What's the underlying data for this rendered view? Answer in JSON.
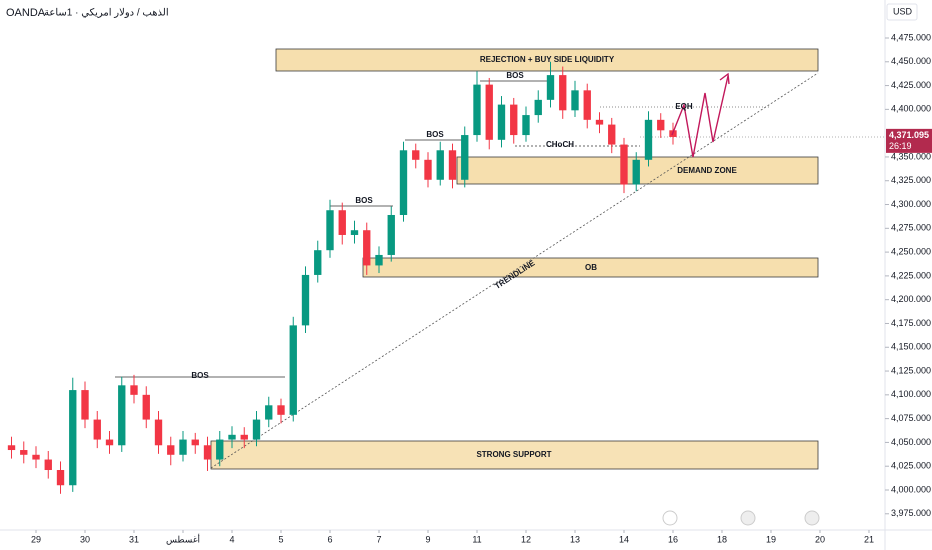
{
  "chart_data": {
    "type": "candlestick",
    "title": "OANDA",
    "subtitle": "الذهب / دولار امريكي · 1ساعة",
    "y_unit": "USD",
    "x": [
      -0.5,
      -0.25,
      0,
      0.25,
      0.5,
      0.75,
      1,
      1.25,
      1.5,
      1.75,
      2,
      2.25,
      2.5,
      2.75,
      3,
      3.25,
      3.5,
      3.75,
      4,
      4.25,
      4.5,
      4.75,
      5,
      5.25,
      5.5,
      5.75,
      6,
      6.25,
      6.5,
      6.75,
      7,
      7.25,
      7.5,
      7.75,
      8,
      8.25,
      8.5,
      8.75,
      9,
      9.25,
      9.5,
      9.75,
      10,
      10.25,
      10.5,
      10.75,
      11,
      11.25,
      11.5,
      11.75,
      12,
      12.25,
      12.5,
      12.75,
      13
    ],
    "open": [
      4047,
      4042,
      4037,
      4032,
      4021,
      4005,
      4105,
      4074,
      4053,
      4047,
      4110,
      4100,
      4074,
      4047,
      4037,
      4053,
      4047,
      4032,
      4053,
      4058,
      4053,
      4074,
      4089,
      4079,
      4173,
      4226,
      4252,
      4294,
      4268,
      4273,
      4236,
      4247,
      4289,
      4357,
      4347,
      4326,
      4357,
      4326,
      4373,
      4426,
      4368,
      4405,
      4373,
      4394,
      4410,
      4436,
      4399,
      4420,
      4389,
      4384,
      4363,
      4321,
      4347,
      4389,
      4378
    ],
    "high": [
      4056,
      4051,
      4046,
      4041,
      4030,
      4118,
      4114,
      4083,
      4062,
      4119,
      4121,
      4109,
      4083,
      4056,
      4062,
      4060,
      4056,
      4062,
      4067,
      4066,
      4083,
      4098,
      4096,
      4182,
      4235,
      4262,
      4305,
      4302,
      4283,
      4281,
      4256,
      4298,
      4366,
      4364,
      4355,
      4366,
      4364,
      4382,
      4440,
      4433,
      4414,
      4412,
      4403,
      4420,
      4450,
      4445,
      4430,
      4427,
      4397,
      4391,
      4370,
      4355,
      4398,
      4396,
      4386
    ],
    "low": [
      4033,
      4028,
      4023,
      4012,
      3996,
      3998,
      4065,
      4044,
      4038,
      4040,
      4091,
      4065,
      4038,
      4026,
      4030,
      4038,
      4020,
      4025,
      4044,
      4044,
      4046,
      4066,
      4070,
      4072,
      4165,
      4218,
      4244,
      4258,
      4259,
      4226,
      4228,
      4240,
      4282,
      4338,
      4318,
      4320,
      4317,
      4318,
      4366,
      4358,
      4360,
      4364,
      4366,
      4386,
      4402,
      4390,
      4392,
      4380,
      4375,
      4354,
      4312,
      4314,
      4340,
      4370,
      4363
    ],
    "close": [
      4042,
      4037,
      4032,
      4021,
      4005,
      4105,
      4074,
      4053,
      4047,
      4110,
      4100,
      4074,
      4047,
      4037,
      4053,
      4047,
      4032,
      4053,
      4058,
      4053,
      4074,
      4089,
      4079,
      4173,
      4226,
      4252,
      4294,
      4268,
      4273,
      4236,
      4247,
      4289,
      4357,
      4347,
      4326,
      4357,
      4326,
      4373,
      4426,
      4368,
      4405,
      4373,
      4394,
      4410,
      4436,
      4399,
      4420,
      4389,
      4384,
      4363,
      4321,
      4347,
      4389,
      4378,
      4371
    ],
    "up_color": "#089981",
    "down_color": "#f23645",
    "xlim": [
      -0.735,
      17.327
    ],
    "xticks": [
      {
        "value": 0,
        "label": "29"
      },
      {
        "value": 1,
        "label": "30"
      },
      {
        "value": 2,
        "label": "31"
      },
      {
        "value": 3,
        "label": "أغسطس"
      },
      {
        "value": 4,
        "label": "4"
      },
      {
        "value": 5,
        "label": "5"
      },
      {
        "value": 6,
        "label": "6"
      },
      {
        "value": 7,
        "label": "7"
      },
      {
        "value": 8,
        "label": "9"
      },
      {
        "value": 9,
        "label": "11"
      },
      {
        "value": 10,
        "label": "12"
      },
      {
        "value": 11,
        "label": "13"
      },
      {
        "value": 12,
        "label": "14"
      },
      {
        "value": 13,
        "label": "16"
      },
      {
        "value": 14,
        "label": "18"
      },
      {
        "value": 15,
        "label": "19"
      },
      {
        "value": 16,
        "label": "20"
      },
      {
        "value": 17,
        "label": "21"
      }
    ],
    "ylim": [
      3957.96,
      4514.93
    ],
    "yticks": [
      {
        "value": 3975,
        "label": "3,975.000"
      },
      {
        "value": 4000,
        "label": "4,000.000"
      },
      {
        "value": 4025,
        "label": "4,025.000"
      },
      {
        "value": 4050,
        "label": "4,050.000"
      },
      {
        "value": 4075,
        "label": "4,075.000"
      },
      {
        "value": 4100,
        "label": "4,100.000"
      },
      {
        "value": 4125,
        "label": "4,125.000"
      },
      {
        "value": 4150,
        "label": "4,150.000"
      },
      {
        "value": 4175,
        "label": "4,175.000"
      },
      {
        "value": 4200,
        "label": "4,200.000"
      },
      {
        "value": 4225,
        "label": "4,225.000"
      },
      {
        "value": 4250,
        "label": "4,250.000"
      },
      {
        "value": 4275,
        "label": "4,275.000"
      },
      {
        "value": 4300,
        "label": "4,300.000"
      },
      {
        "value": 4325,
        "label": "4,325.000"
      },
      {
        "value": 4350,
        "label": "4,350.000"
      },
      {
        "value": 4400,
        "label": "4,400.000"
      },
      {
        "value": 4425,
        "label": "4,425.000"
      },
      {
        "value": 4450,
        "label": "4,450.000"
      },
      {
        "value": 4475,
        "label": "4,475.000"
      }
    ],
    "last_price": {
      "value": 4371.095,
      "label": "4,371.095"
    },
    "countdown": "26:19",
    "annotations": [
      "REJECTION + BUY SIDE LIQUIDITY",
      "DEMAND ZONE",
      "OB",
      "STRONG SUPPORT",
      "BOS",
      "BOS",
      "BOS",
      "BOS",
      "CHoCH",
      "EQH",
      "TRENDLINE"
    ]
  }
}
